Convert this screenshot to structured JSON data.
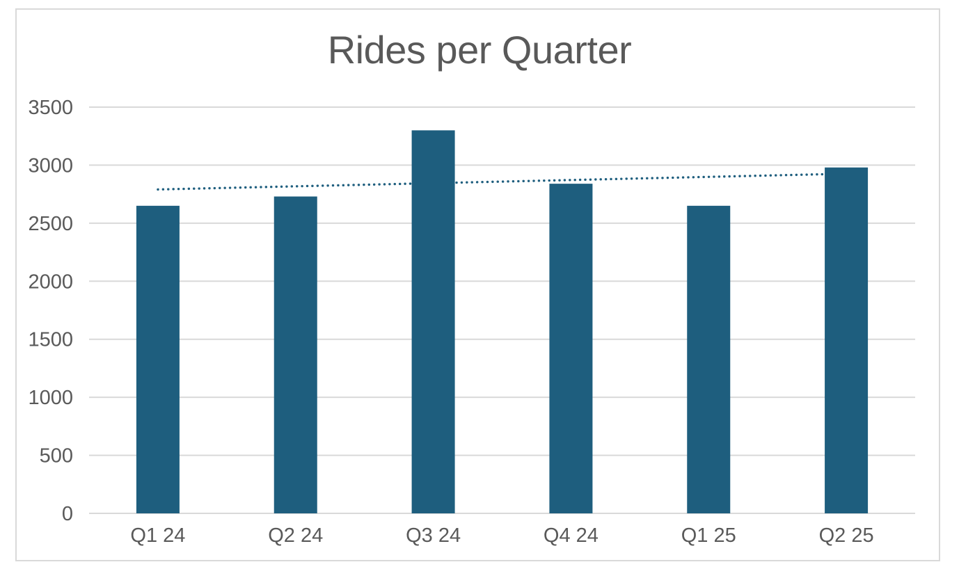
{
  "chart_data": {
    "type": "bar",
    "title": "Rides per Quarter",
    "categories": [
      "Q1 24",
      "Q2 24",
      "Q3 24",
      "Q4 24",
      "Q1 25",
      "Q2 25"
    ],
    "values": [
      2650,
      2730,
      3300,
      2840,
      2650,
      2980
    ],
    "xlabel": "",
    "ylabel": "",
    "ylim": [
      0,
      3500
    ],
    "ytick_interval": 500,
    "yticks": [
      0,
      500,
      1000,
      1500,
      2000,
      2500,
      3000,
      3500
    ],
    "grid": "horizontal",
    "legend": "none",
    "trendline": {
      "type": "linear",
      "style": "dotted"
    },
    "colors": {
      "bar": "#1e5e7e",
      "trendline": "#1e5e7e",
      "gridline": "#d9d9d9",
      "axis_text": "#595959",
      "title_text": "#595959",
      "frame_border": "#d9d9d9",
      "background": "#ffffff"
    }
  }
}
